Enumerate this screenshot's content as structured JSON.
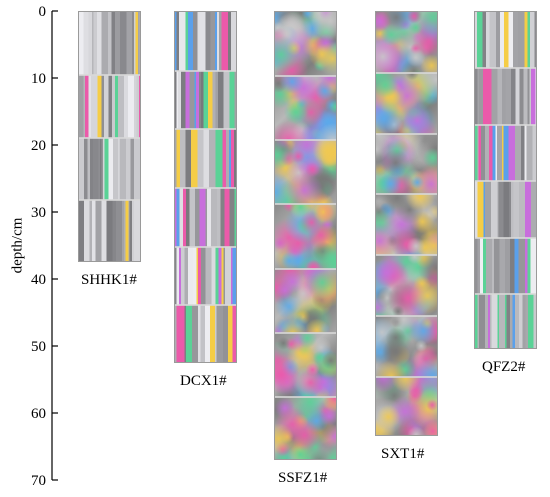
{
  "axis": {
    "title": "depth/cm",
    "ticks": [
      0,
      10,
      20,
      30,
      40,
      50,
      60,
      70
    ]
  },
  "samples": [
    {
      "name": "SHHK1#",
      "depth_cm": 37.5,
      "texture": "columnar",
      "colorfulness": 0.35
    },
    {
      "name": "DCX1#",
      "depth_cm": 52.5,
      "texture": "columnar",
      "colorfulness": 0.85
    },
    {
      "name": "SSFZ1#",
      "depth_cm": 67.0,
      "texture": "granular",
      "colorfulness": 0.8
    },
    {
      "name": "SXT1#",
      "depth_cm": 63.5,
      "texture": "granular",
      "colorfulness": 0.7
    },
    {
      "name": "QFZ2#",
      "depth_cm": 50.5,
      "texture": "columnar",
      "colorfulness": 0.55
    }
  ]
}
